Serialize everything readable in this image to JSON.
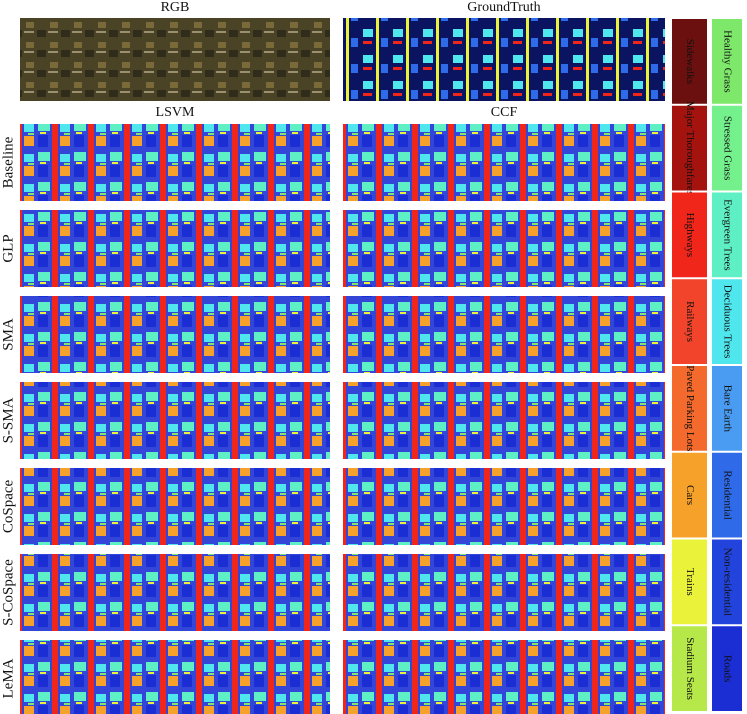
{
  "header": {
    "top_columns": [
      "RGB",
      "GroundTruth"
    ],
    "columns": [
      "LSVM",
      "CCF"
    ]
  },
  "rows": [
    "Baseline",
    "GLP",
    "SMA",
    "S-SMA",
    "CoSpace",
    "S-CoSpace",
    "LeMA"
  ],
  "legend": {
    "left": [
      {
        "label": "Sidewalks",
        "color": "#6b0f0f"
      },
      {
        "label": "Major Thoroughfares",
        "color": "#a5130f"
      },
      {
        "label": "Highways",
        "color": "#f0261a"
      },
      {
        "label": "Railways",
        "color": "#f2442a"
      },
      {
        "label": "Paved Parking Lots",
        "color": "#f46a2c"
      },
      {
        "label": "Cars",
        "color": "#f6a12a"
      },
      {
        "label": "Trains",
        "color": "#eaf23a"
      },
      {
        "label": "Stadium Seats",
        "color": "#b6e84a"
      }
    ],
    "right": [
      {
        "label": "Healthy Grass",
        "color": "#7ee86a"
      },
      {
        "label": "Stressed Grass",
        "color": "#74f08c"
      },
      {
        "label": "Evergreen Trees",
        "color": "#5ef0c4"
      },
      {
        "label": "Deciduous Trees",
        "color": "#4fe6ee"
      },
      {
        "label": "Bare Earth",
        "color": "#4a9cf2"
      },
      {
        "label": "Residential",
        "color": "#2f6be8"
      },
      {
        "label": "Non-residential",
        "color": "#2244dc"
      },
      {
        "label": "Roads",
        "color": "#1a2ed4"
      }
    ]
  }
}
